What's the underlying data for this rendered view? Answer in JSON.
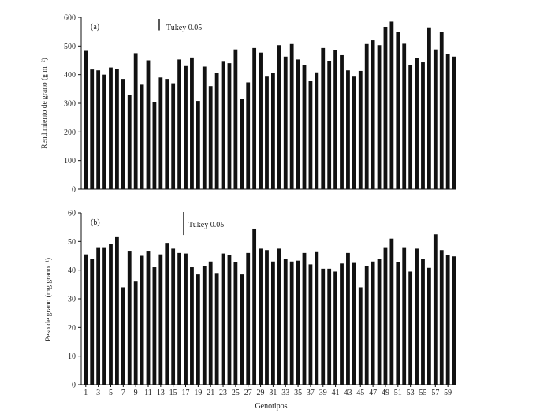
{
  "chart_data": [
    {
      "type": "bar",
      "panel_label": "(a)",
      "ylabel": "Rendimiento de grano (g m⁻²)",
      "xlabel": "",
      "ylim": [
        0,
        600
      ],
      "yticks": [
        0,
        100,
        200,
        300,
        400,
        500,
        600
      ],
      "tukey_label": "Tukey 0.05",
      "tukey_value": 40,
      "x": [
        1,
        2,
        3,
        4,
        5,
        6,
        7,
        8,
        9,
        10,
        11,
        12,
        13,
        14,
        15,
        16,
        17,
        18,
        19,
        20,
        21,
        22,
        23,
        24,
        25,
        26,
        27,
        28,
        29,
        30,
        31,
        32,
        33,
        34,
        35,
        36,
        37,
        38,
        39,
        40,
        41,
        42,
        43,
        44,
        45,
        46,
        47,
        48,
        49,
        50,
        51,
        52,
        53,
        54,
        55,
        56,
        57,
        58,
        59,
        60
      ],
      "values": [
        483,
        418,
        415,
        400,
        425,
        420,
        385,
        330,
        475,
        365,
        450,
        305,
        390,
        385,
        370,
        453,
        430,
        460,
        308,
        428,
        360,
        405,
        445,
        440,
        488,
        315,
        373,
        493,
        477,
        393,
        407,
        503,
        463,
        507,
        453,
        433,
        377,
        408,
        493,
        448,
        487,
        468,
        415,
        393,
        413,
        507,
        520,
        503,
        567,
        585,
        548,
        508,
        433,
        458,
        443,
        565,
        488,
        550,
        473,
        463
      ]
    },
    {
      "type": "bar",
      "panel_label": "(b)",
      "ylabel": "Peso de grano (mg grano⁻¹)",
      "xlabel": "Genotipos",
      "ylim": [
        0,
        60
      ],
      "yticks": [
        0,
        10,
        20,
        30,
        40,
        50,
        60
      ],
      "tukey_label": "Tukey 0.05",
      "tukey_value": 8,
      "x": [
        1,
        2,
        3,
        4,
        5,
        6,
        7,
        8,
        9,
        10,
        11,
        12,
        13,
        14,
        15,
        16,
        17,
        18,
        19,
        20,
        21,
        22,
        23,
        24,
        25,
        26,
        27,
        28,
        29,
        30,
        31,
        32,
        33,
        34,
        35,
        36,
        37,
        38,
        39,
        40,
        41,
        42,
        43,
        44,
        45,
        46,
        47,
        48,
        49,
        50,
        51,
        52,
        53,
        54,
        55,
        56,
        57,
        58,
        59,
        60
      ],
      "xtick_labels": [
        "1",
        "3",
        "5",
        "7",
        "9",
        "11",
        "13",
        "15",
        "17",
        "19",
        "21",
        "23",
        "25",
        "27",
        "29",
        "31",
        "33",
        "35",
        "37",
        "39",
        "41",
        "43",
        "45",
        "47",
        "49",
        "51",
        "53",
        "55",
        "57",
        "59"
      ],
      "values": [
        45.5,
        44,
        48,
        48,
        49,
        51.5,
        34,
        46.5,
        36,
        45,
        46.5,
        41,
        45.5,
        49.5,
        47.5,
        46,
        45.8,
        41,
        38.5,
        41.5,
        43,
        39,
        45.8,
        45.3,
        42.8,
        38.5,
        46,
        54.5,
        47.5,
        47,
        43,
        47.5,
        44,
        43,
        43.3,
        46,
        42,
        46.3,
        40.5,
        40.5,
        39.5,
        42.3,
        46,
        42.5,
        34,
        41.5,
        43,
        44,
        48,
        51,
        42.8,
        48,
        39.5,
        47.5,
        43.8,
        40.8,
        52.5,
        47,
        45.3,
        44.8
      ]
    }
  ]
}
